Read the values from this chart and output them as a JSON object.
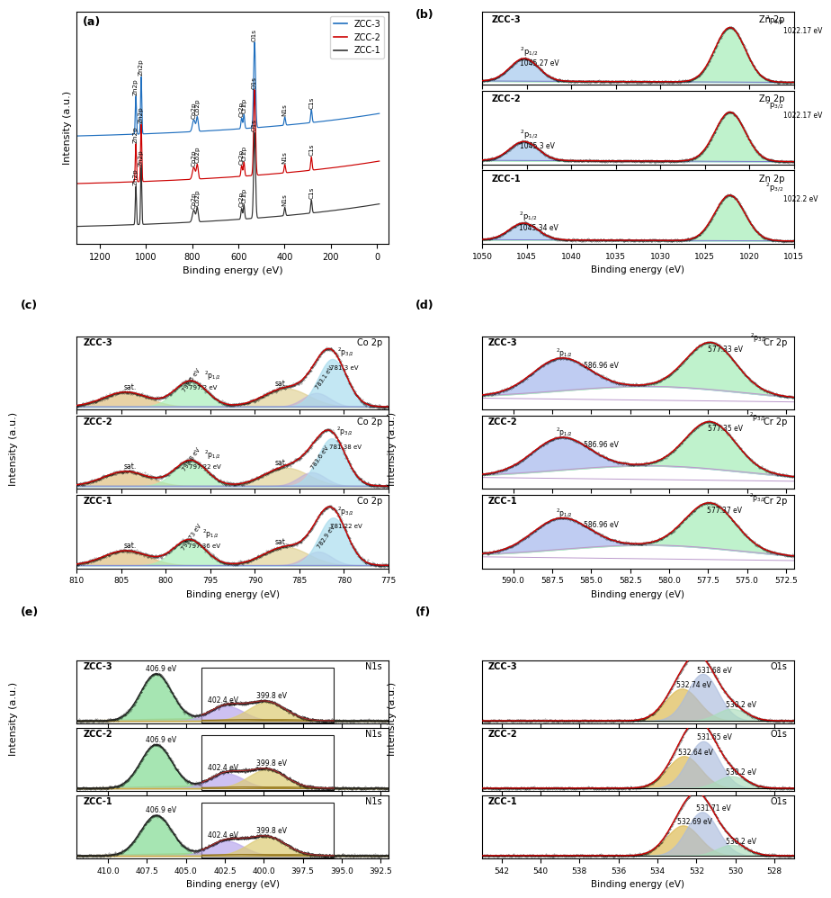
{
  "colors": {
    "ZCC3": "#1F6FBF",
    "ZCC2": "#CC0000",
    "ZCC1": "#333333",
    "red_fit": "#CC0000",
    "pink_fit": "#CC4444",
    "blue_baseline": "#7777CC",
    "pink_baseline": "#CC88AA",
    "green_baseline": "#88CC88",
    "light_green": "#AAEEBB",
    "light_blue": "#AABBEE",
    "light_purple": "#CCAAEE",
    "light_orange": "#DDBB66",
    "light_cyan": "#AADDEE",
    "light_yellow": "#EEDDAA"
  },
  "panel_b": {
    "subpanels": [
      {
        "label": "ZCC-3",
        "p12": 1045.27,
        "p32": 1022.17,
        "p12_amp": 0.3,
        "p32_amp": 0.72,
        "p12_sig": 1.6,
        "p32_sig": 1.7
      },
      {
        "label": "ZCC-2",
        "p12": 1045.3,
        "p32": 1022.17,
        "p12_amp": 0.25,
        "p32_amp": 0.65,
        "p12_sig": 1.6,
        "p32_sig": 1.7
      },
      {
        "label": "ZCC-1",
        "p12": 1045.34,
        "p32": 1022.2,
        "p12_amp": 0.22,
        "p32_amp": 0.6,
        "p12_sig": 1.6,
        "p32_sig": 1.7
      }
    ]
  },
  "panel_c": {
    "subpanels": [
      {
        "label": "ZCC-3",
        "sat1_mu": 804.5,
        "sat1_amp": 0.16,
        "sat1_sig": 2.5,
        "p12_mu": 797.2,
        "p12_amp": 0.28,
        "p12_sig": 1.8,
        "sat2_mu": 786.5,
        "sat2_amp": 0.2,
        "sat2_sig": 2.5,
        "p32_mu": 781.3,
        "p32_amp": 0.52,
        "p32_sig": 1.6,
        "p32s_mu": 783.1,
        "p32s_amp": 0.15,
        "p32s_sig": 1.5,
        "p12_sat_label": "798.5 eV",
        "p12_label": "797.2 eV",
        "p32s_label": "783.1 eV",
        "p32_label": "781.3 eV"
      },
      {
        "label": "ZCC-2",
        "sat1_mu": 804.5,
        "sat1_amp": 0.16,
        "sat1_sig": 2.5,
        "p12_mu": 797.22,
        "p12_amp": 0.28,
        "p12_sig": 1.8,
        "sat2_mu": 786.5,
        "sat2_amp": 0.2,
        "sat2_sig": 2.5,
        "p32_mu": 781.38,
        "p32_amp": 0.52,
        "p32_sig": 1.6,
        "p32s_mu": 783.6,
        "p32s_amp": 0.15,
        "p32s_sig": 1.5,
        "p12_sat_label": "798.8 eV",
        "p12_label": "797.22 eV",
        "p32s_label": "783.6 eV",
        "p32_label": "781.38 eV"
      },
      {
        "label": "ZCC-1",
        "sat1_mu": 804.5,
        "sat1_amp": 0.16,
        "sat1_sig": 2.5,
        "p12_mu": 797.36,
        "p12_amp": 0.28,
        "p12_sig": 1.8,
        "sat2_mu": 786.5,
        "sat2_amp": 0.2,
        "sat2_sig": 2.5,
        "p32_mu": 781.22,
        "p32_amp": 0.52,
        "p32_sig": 1.6,
        "p32s_mu": 782.9,
        "p32s_amp": 0.15,
        "p32s_sig": 1.5,
        "p12_sat_label": "798.73 eV",
        "p12_label": "797.36 eV",
        "p32s_label": "782.9 eV",
        "p32_label": "781.22 eV"
      }
    ]
  },
  "panel_d": {
    "subpanels": [
      {
        "label": "ZCC-3",
        "p12": 586.96,
        "p32": 577.33,
        "p12_amp": 0.52,
        "p32_amp": 0.75,
        "p12_sig": 1.8,
        "p32_sig": 1.6
      },
      {
        "label": "ZCC-2",
        "p12": 586.96,
        "p32": 577.35,
        "p12_amp": 0.52,
        "p32_amp": 0.75,
        "p12_sig": 1.8,
        "p32_sig": 1.6
      },
      {
        "label": "ZCC-1",
        "p12": 586.96,
        "p32": 577.37,
        "p12_amp": 0.5,
        "p32_amp": 0.72,
        "p12_sig": 1.8,
        "p32_sig": 1.6
      }
    ]
  },
  "panel_e": {
    "subpanels": [
      {
        "label": "ZCC-3",
        "p1": 406.9,
        "p1_amp": 0.7,
        "p1_sig": 1.0,
        "p2": 402.4,
        "p2_amp": 0.22,
        "p2_sig": 1.1,
        "p3": 399.8,
        "p3_amp": 0.28,
        "p3_sig": 1.2
      },
      {
        "label": "ZCC-2",
        "p1": 406.9,
        "p1_amp": 0.65,
        "p1_sig": 1.0,
        "p2": 402.4,
        "p2_amp": 0.22,
        "p2_sig": 1.1,
        "p3": 399.8,
        "p3_amp": 0.28,
        "p3_sig": 1.2
      },
      {
        "label": "ZCC-1",
        "p1": 406.9,
        "p1_amp": 0.6,
        "p1_sig": 1.0,
        "p2": 402.4,
        "p2_amp": 0.22,
        "p2_sig": 1.1,
        "p3": 399.8,
        "p3_amp": 0.28,
        "p3_sig": 1.2
      }
    ]
  },
  "panel_f": {
    "subpanels": [
      {
        "label": "ZCC-3",
        "p1": 532.74,
        "p1_amp": 0.48,
        "p1_sig": 0.85,
        "p2": 531.68,
        "p2_amp": 0.7,
        "p2_sig": 0.8,
        "p3": 530.2,
        "p3_amp": 0.18,
        "p3_sig": 0.75
      },
      {
        "label": "ZCC-2",
        "p1": 532.64,
        "p1_amp": 0.48,
        "p1_sig": 0.85,
        "p2": 531.65,
        "p2_amp": 0.7,
        "p2_sig": 0.8,
        "p3": 530.2,
        "p3_amp": 0.18,
        "p3_sig": 0.75
      },
      {
        "label": "ZCC-1",
        "p1": 532.69,
        "p1_amp": 0.45,
        "p1_sig": 0.85,
        "p2": 531.71,
        "p2_amp": 0.65,
        "p2_sig": 0.8,
        "p3": 530.2,
        "p3_amp": 0.16,
        "p3_sig": 0.75
      }
    ]
  }
}
